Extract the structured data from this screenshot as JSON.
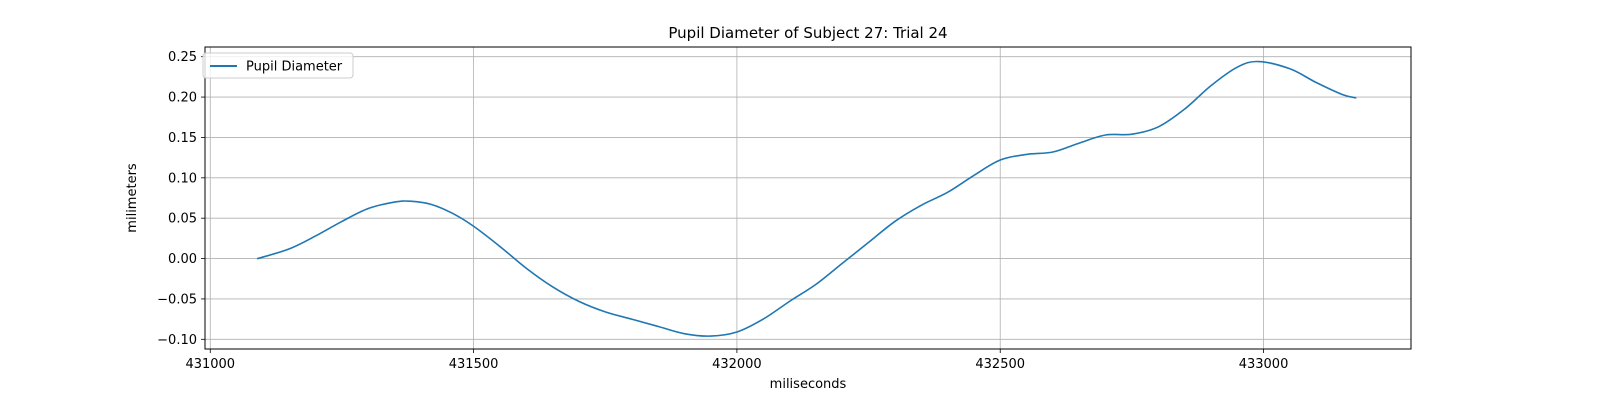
{
  "chart_data": {
    "type": "line",
    "title": "Pupil Diameter of Subject 27: Trial 24",
    "xlabel": "miliseconds",
    "ylabel": "milimeters",
    "xlim": [
      430990,
      433280
    ],
    "ylim": [
      -0.112,
      0.262
    ],
    "xticks": [
      431000,
      431500,
      432000,
      432500,
      433000
    ],
    "xtick_labels": [
      "431000",
      "431500",
      "432000",
      "432500",
      "433000"
    ],
    "yticks": [
      -0.1,
      -0.05,
      0.0,
      0.05,
      0.1,
      0.15,
      0.2,
      0.25
    ],
    "ytick_labels": [
      "−0.10",
      "−0.05",
      "0.00",
      "0.05",
      "0.10",
      "0.15",
      "0.20",
      "0.25"
    ],
    "grid": true,
    "legend_position": "top-left",
    "series": [
      {
        "name": "Pupil Diameter",
        "color": "#1f77b4",
        "x": [
          431090,
          431150,
          431200,
          431250,
          431300,
          431350,
          431380,
          431420,
          431460,
          431500,
          431550,
          431600,
          431650,
          431700,
          431750,
          431800,
          431850,
          431900,
          431950,
          432000,
          432050,
          432100,
          432150,
          432200,
          432250,
          432300,
          432350,
          432400,
          432450,
          432500,
          432550,
          432600,
          432650,
          432700,
          432750,
          432800,
          432850,
          432900,
          432950,
          432990,
          433050,
          433100,
          433150,
          433175
        ],
        "y": [
          0.0,
          0.012,
          0.028,
          0.046,
          0.062,
          0.07,
          0.071,
          0.067,
          0.056,
          0.04,
          0.015,
          -0.012,
          -0.035,
          -0.053,
          -0.066,
          -0.075,
          -0.084,
          -0.093,
          -0.096,
          -0.091,
          -0.075,
          -0.053,
          -0.032,
          -0.006,
          0.02,
          0.046,
          0.066,
          0.082,
          0.103,
          0.122,
          0.129,
          0.132,
          0.143,
          0.153,
          0.154,
          0.163,
          0.185,
          0.214,
          0.237,
          0.244,
          0.235,
          0.218,
          0.203,
          0.199
        ]
      }
    ]
  }
}
